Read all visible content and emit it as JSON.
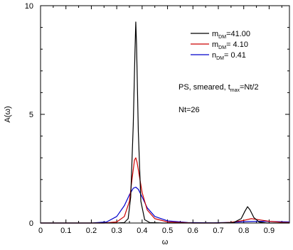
{
  "chart_data": {
    "type": "line",
    "xlabel": "ω",
    "ylabel": "A(ω)",
    "xlim": [
      0,
      0.98
    ],
    "ylim": [
      0,
      10
    ],
    "x_ticks": [
      "0",
      "0.1",
      "0.2",
      "0.3",
      "0.4",
      "0.5",
      "0.6",
      "0.7",
      "0.8",
      "0.9"
    ],
    "y_ticks": [
      "0",
      "5",
      "10"
    ],
    "grid": false,
    "legend_position": "top-right",
    "annotations": [
      {
        "prefix": "PS, smeared, t",
        "sub": "max",
        "suffix": "=Nt/2"
      },
      {
        "text": "Nt=26"
      }
    ],
    "series": [
      {
        "legend": {
          "main": "m",
          "sub": "DM",
          "value": "=41.00"
        },
        "color": "#000000",
        "points": [
          [
            0,
            0
          ],
          [
            0.3,
            0
          ],
          [
            0.33,
            0.02
          ],
          [
            0.345,
            0.2
          ],
          [
            0.355,
            1.2
          ],
          [
            0.365,
            4.5
          ],
          [
            0.372,
            8.0
          ],
          [
            0.375,
            9.25
          ],
          [
            0.378,
            8.2
          ],
          [
            0.385,
            4.2
          ],
          [
            0.395,
            1.0
          ],
          [
            0.41,
            0.15
          ],
          [
            0.43,
            0.02
          ],
          [
            0.48,
            0
          ],
          [
            0.7,
            0
          ],
          [
            0.76,
            0.02
          ],
          [
            0.79,
            0.2
          ],
          [
            0.805,
            0.55
          ],
          [
            0.815,
            0.75
          ],
          [
            0.825,
            0.6
          ],
          [
            0.84,
            0.25
          ],
          [
            0.86,
            0.05
          ],
          [
            0.89,
            0
          ],
          [
            0.98,
            0
          ]
        ]
      },
      {
        "legend": {
          "main": "m",
          "sub": "DM",
          "value": "= 4.10"
        },
        "color": "#cc0000",
        "points": [
          [
            0,
            0
          ],
          [
            0.25,
            0
          ],
          [
            0.3,
            0.05
          ],
          [
            0.33,
            0.3
          ],
          [
            0.35,
            1.0
          ],
          [
            0.36,
            2.0
          ],
          [
            0.37,
            2.9
          ],
          [
            0.375,
            3.0
          ],
          [
            0.38,
            2.8
          ],
          [
            0.39,
            2.1
          ],
          [
            0.4,
            1.4
          ],
          [
            0.42,
            0.6
          ],
          [
            0.45,
            0.2
          ],
          [
            0.5,
            0.05
          ],
          [
            0.6,
            0
          ],
          [
            0.7,
            0
          ],
          [
            0.75,
            0.03
          ],
          [
            0.8,
            0.12
          ],
          [
            0.83,
            0.2
          ],
          [
            0.86,
            0.15
          ],
          [
            0.9,
            0.08
          ],
          [
            0.95,
            0.03
          ],
          [
            0.98,
            0.02
          ]
        ]
      },
      {
        "legend": {
          "main": "n",
          "sub": "DM",
          "value": "=  0.41"
        },
        "color": "#0000cc",
        "points": [
          [
            0,
            0
          ],
          [
            0.2,
            0
          ],
          [
            0.26,
            0.05
          ],
          [
            0.3,
            0.3
          ],
          [
            0.33,
            0.8
          ],
          [
            0.35,
            1.3
          ],
          [
            0.365,
            1.6
          ],
          [
            0.375,
            1.65
          ],
          [
            0.385,
            1.55
          ],
          [
            0.4,
            1.2
          ],
          [
            0.42,
            0.7
          ],
          [
            0.45,
            0.3
          ],
          [
            0.5,
            0.1
          ],
          [
            0.58,
            0.02
          ],
          [
            0.68,
            0.01
          ],
          [
            0.75,
            0.03
          ],
          [
            0.82,
            0.07
          ],
          [
            0.88,
            0.08
          ],
          [
            0.93,
            0.06
          ],
          [
            0.98,
            0.05
          ]
        ]
      }
    ]
  }
}
